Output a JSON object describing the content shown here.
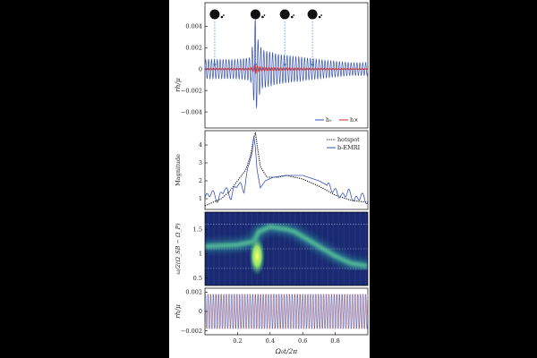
{
  "chart_data": [
    {
      "type": "line",
      "ylabel": "rh/μ",
      "ylim": [
        -0.0055,
        0.0062
      ],
      "xlim": [
        0,
        1
      ],
      "yticks": [
        "0.004",
        "0.002",
        "0",
        "−0.002",
        "−0.004"
      ],
      "ytick_values": [
        0.004,
        0.002,
        0,
        -0.002,
        -0.004
      ],
      "series": [
        {
          "name": "h₊",
          "color": "#3a55b0"
        },
        {
          "name": "h×",
          "color": "#d62728"
        }
      ],
      "envelope": {
        "x": [
          0.0,
          0.2,
          0.28,
          0.3,
          0.31,
          0.32,
          0.35,
          0.45,
          0.6,
          0.75,
          0.9,
          1.0
        ],
        "amplitude": [
          0.0009,
          0.0009,
          0.0011,
          0.003,
          0.005,
          0.003,
          0.0018,
          0.0014,
          0.0011,
          0.0008,
          0.0006,
          0.0006
        ]
      },
      "annotations": [
        {
          "x": 0.06,
          "label": "orbit-config-1"
        },
        {
          "x": 0.31,
          "label": "orbit-config-2"
        },
        {
          "x": 0.49,
          "label": "orbit-config-3"
        },
        {
          "x": 0.66,
          "label": "orbit-config-4"
        }
      ]
    },
    {
      "type": "line",
      "ylabel": "Magnitude",
      "yticks": [
        "4",
        "3",
        "2",
        "1"
      ],
      "ytick_values": [
        4,
        3,
        2,
        1
      ],
      "ylim": [
        0.4,
        4.8
      ],
      "series": [
        {
          "name": "hotspot",
          "style": "dotted",
          "color": "#111111",
          "x": [
            0.0,
            0.05,
            0.1,
            0.15,
            0.2,
            0.25,
            0.28,
            0.3,
            0.31,
            0.32,
            0.34,
            0.38,
            0.45,
            0.5,
            0.6,
            0.7,
            0.8,
            0.9,
            1.0
          ],
          "y": [
            0.6,
            0.8,
            1.0,
            1.4,
            2.0,
            2.6,
            3.4,
            4.4,
            4.7,
            4.0,
            2.8,
            2.2,
            2.2,
            2.3,
            2.1,
            1.7,
            1.2,
            0.9,
            0.8
          ]
        },
        {
          "name": "b-EMRI",
          "style": "solid",
          "color": "#3a55b0",
          "x": [
            0.0,
            0.04,
            0.08,
            0.12,
            0.16,
            0.2,
            0.24,
            0.27,
            0.29,
            0.3,
            0.31,
            0.32,
            0.34,
            0.37,
            0.42,
            0.5,
            0.6,
            0.7,
            0.76,
            0.8,
            0.84,
            0.88,
            0.92,
            0.96,
            1.0
          ],
          "y": [
            1.0,
            1.4,
            0.9,
            1.6,
            1.1,
            1.9,
            1.5,
            2.9,
            3.6,
            4.5,
            3.8,
            2.6,
            1.6,
            2.0,
            2.2,
            2.3,
            2.3,
            2.0,
            1.7,
            1.4,
            1.1,
            1.4,
            0.9,
            1.2,
            0.8
          ]
        }
      ]
    },
    {
      "type": "heatmap",
      "ylabel": "ω/2(Ω_SB − Ω_P)",
      "yticks": [
        "1.5",
        "1",
        "0.5"
      ],
      "ytick_values": [
        1.5,
        1.0,
        0.5
      ],
      "ylim": [
        0.35,
        1.85
      ],
      "ridge": {
        "x": [
          0.0,
          0.2,
          0.3,
          0.33,
          0.4,
          0.5,
          0.55,
          0.6,
          0.7,
          0.8,
          0.9,
          1.0
        ],
        "y": [
          1.15,
          1.18,
          1.25,
          1.45,
          1.55,
          1.5,
          1.45,
          1.35,
          1.15,
          0.95,
          0.8,
          0.75
        ]
      },
      "hot_spot": {
        "x": 0.32,
        "y": 0.95
      },
      "reference_lines": [
        1.6,
        1.1,
        0.7
      ]
    },
    {
      "type": "line",
      "ylabel": "rh/μ",
      "xlabel": "Ω₀t/2π",
      "yticks": [
        "0.002",
        "0",
        "−0.002"
      ],
      "ytick_values": [
        0.002,
        0,
        -0.002
      ],
      "ylim": [
        -0.0024,
        0.0024
      ],
      "xticks": [
        "0.2",
        "0.4",
        "0.6",
        "0.8"
      ],
      "xtick_values": [
        0.2,
        0.4,
        0.6,
        0.8
      ],
      "amplitude": 0.0018,
      "series": [
        {
          "name": "h₊",
          "color": "#3a55b0"
        },
        {
          "name": "h×",
          "color": "#e08080"
        }
      ]
    }
  ]
}
